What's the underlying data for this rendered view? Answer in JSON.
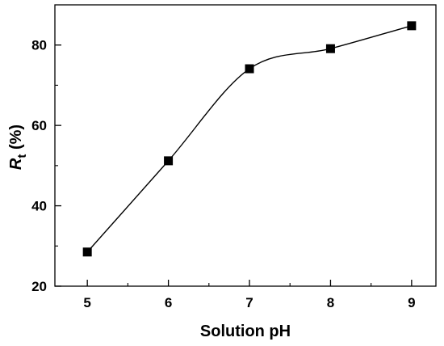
{
  "chart_data": {
    "type": "scatter",
    "xlabel": "Solution pH",
    "ylabel": {
      "symbol": "R",
      "subscript": "t",
      "unit": " (%)"
    },
    "xlim": [
      4.6,
      9.3
    ],
    "ylim": [
      20,
      90
    ],
    "xticks": [
      5,
      6,
      7,
      8,
      9
    ],
    "yticks": [
      20,
      40,
      60,
      80
    ],
    "grid": false,
    "legend": "none",
    "marker": "square",
    "color": "#000000",
    "fit_line": true,
    "series": [
      {
        "x": [
          5,
          6,
          7,
          8,
          9
        ],
        "y": [
          28.5,
          51.2,
          74.1,
          79.1,
          84.8
        ]
      }
    ]
  }
}
